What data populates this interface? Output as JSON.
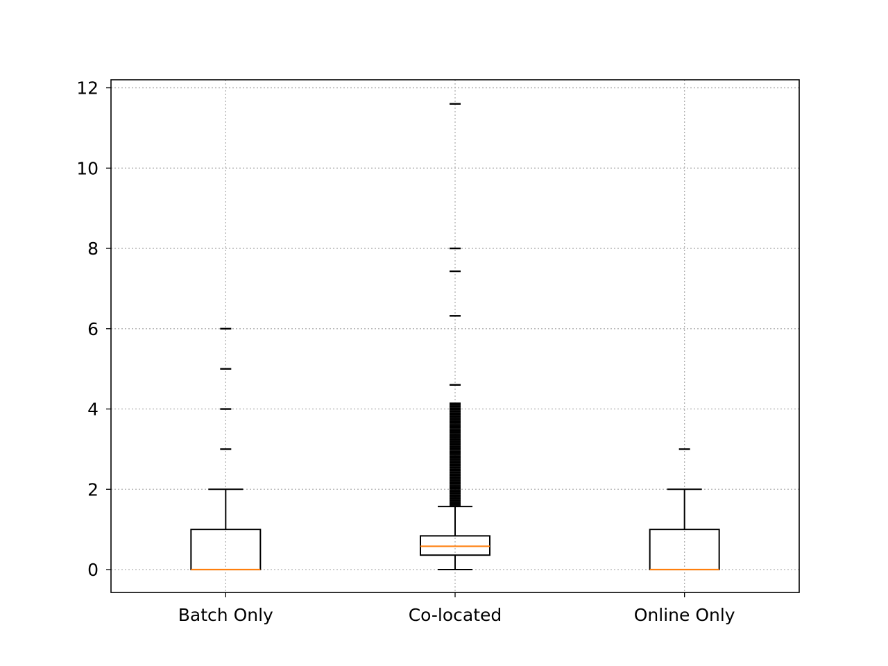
{
  "chart_data": {
    "type": "box",
    "title": "",
    "xlabel": "",
    "ylabel": "",
    "ylim": [
      -0.57,
      12.2
    ],
    "yticks": [
      0,
      2,
      4,
      6,
      8,
      10,
      12
    ],
    "ytick_labels": [
      "0",
      "2",
      "4",
      "6",
      "8",
      "10",
      "12"
    ],
    "grid": true,
    "categories": [
      "Batch Only",
      "Co-located",
      "Online Only"
    ],
    "boxes": [
      {
        "name": "Batch Only",
        "whisker_low": 0,
        "q1": 0,
        "median": 0,
        "q3": 1,
        "whisker_high": 2,
        "outliers": [
          3,
          4,
          5,
          6
        ]
      },
      {
        "name": "Co-located",
        "whisker_low": 0,
        "q1": 0.36,
        "median": 0.58,
        "q3": 0.84,
        "whisker_high": 1.57,
        "outliers": [
          1.58,
          1.62,
          1.66,
          1.7,
          1.74,
          1.78,
          1.82,
          1.86,
          1.9,
          1.94,
          1.98,
          2.02,
          2.06,
          2.1,
          2.14,
          2.18,
          2.22,
          2.26,
          2.3,
          2.34,
          2.38,
          2.42,
          2.46,
          2.5,
          2.54,
          2.58,
          2.62,
          2.66,
          2.7,
          2.74,
          2.78,
          2.82,
          2.86,
          2.9,
          2.94,
          2.98,
          3.02,
          3.06,
          3.1,
          3.14,
          3.18,
          3.22,
          3.26,
          3.3,
          3.34,
          3.38,
          3.42,
          3.46,
          3.5,
          3.54,
          3.58,
          3.62,
          3.66,
          3.7,
          3.74,
          3.78,
          3.82,
          3.86,
          3.9,
          3.94,
          3.98,
          4.02,
          4.06,
          4.1,
          4.14,
          4.6,
          6.32,
          7.43,
          8.0,
          11.6
        ]
      },
      {
        "name": "Online Only",
        "whisker_low": 0,
        "q1": 0,
        "median": 0,
        "q3": 1,
        "whisker_high": 2,
        "outliers": [
          3
        ]
      }
    ],
    "colors": {
      "box": "#000000",
      "median": "#ff7f0e",
      "grid": "#b0b0b0"
    }
  }
}
